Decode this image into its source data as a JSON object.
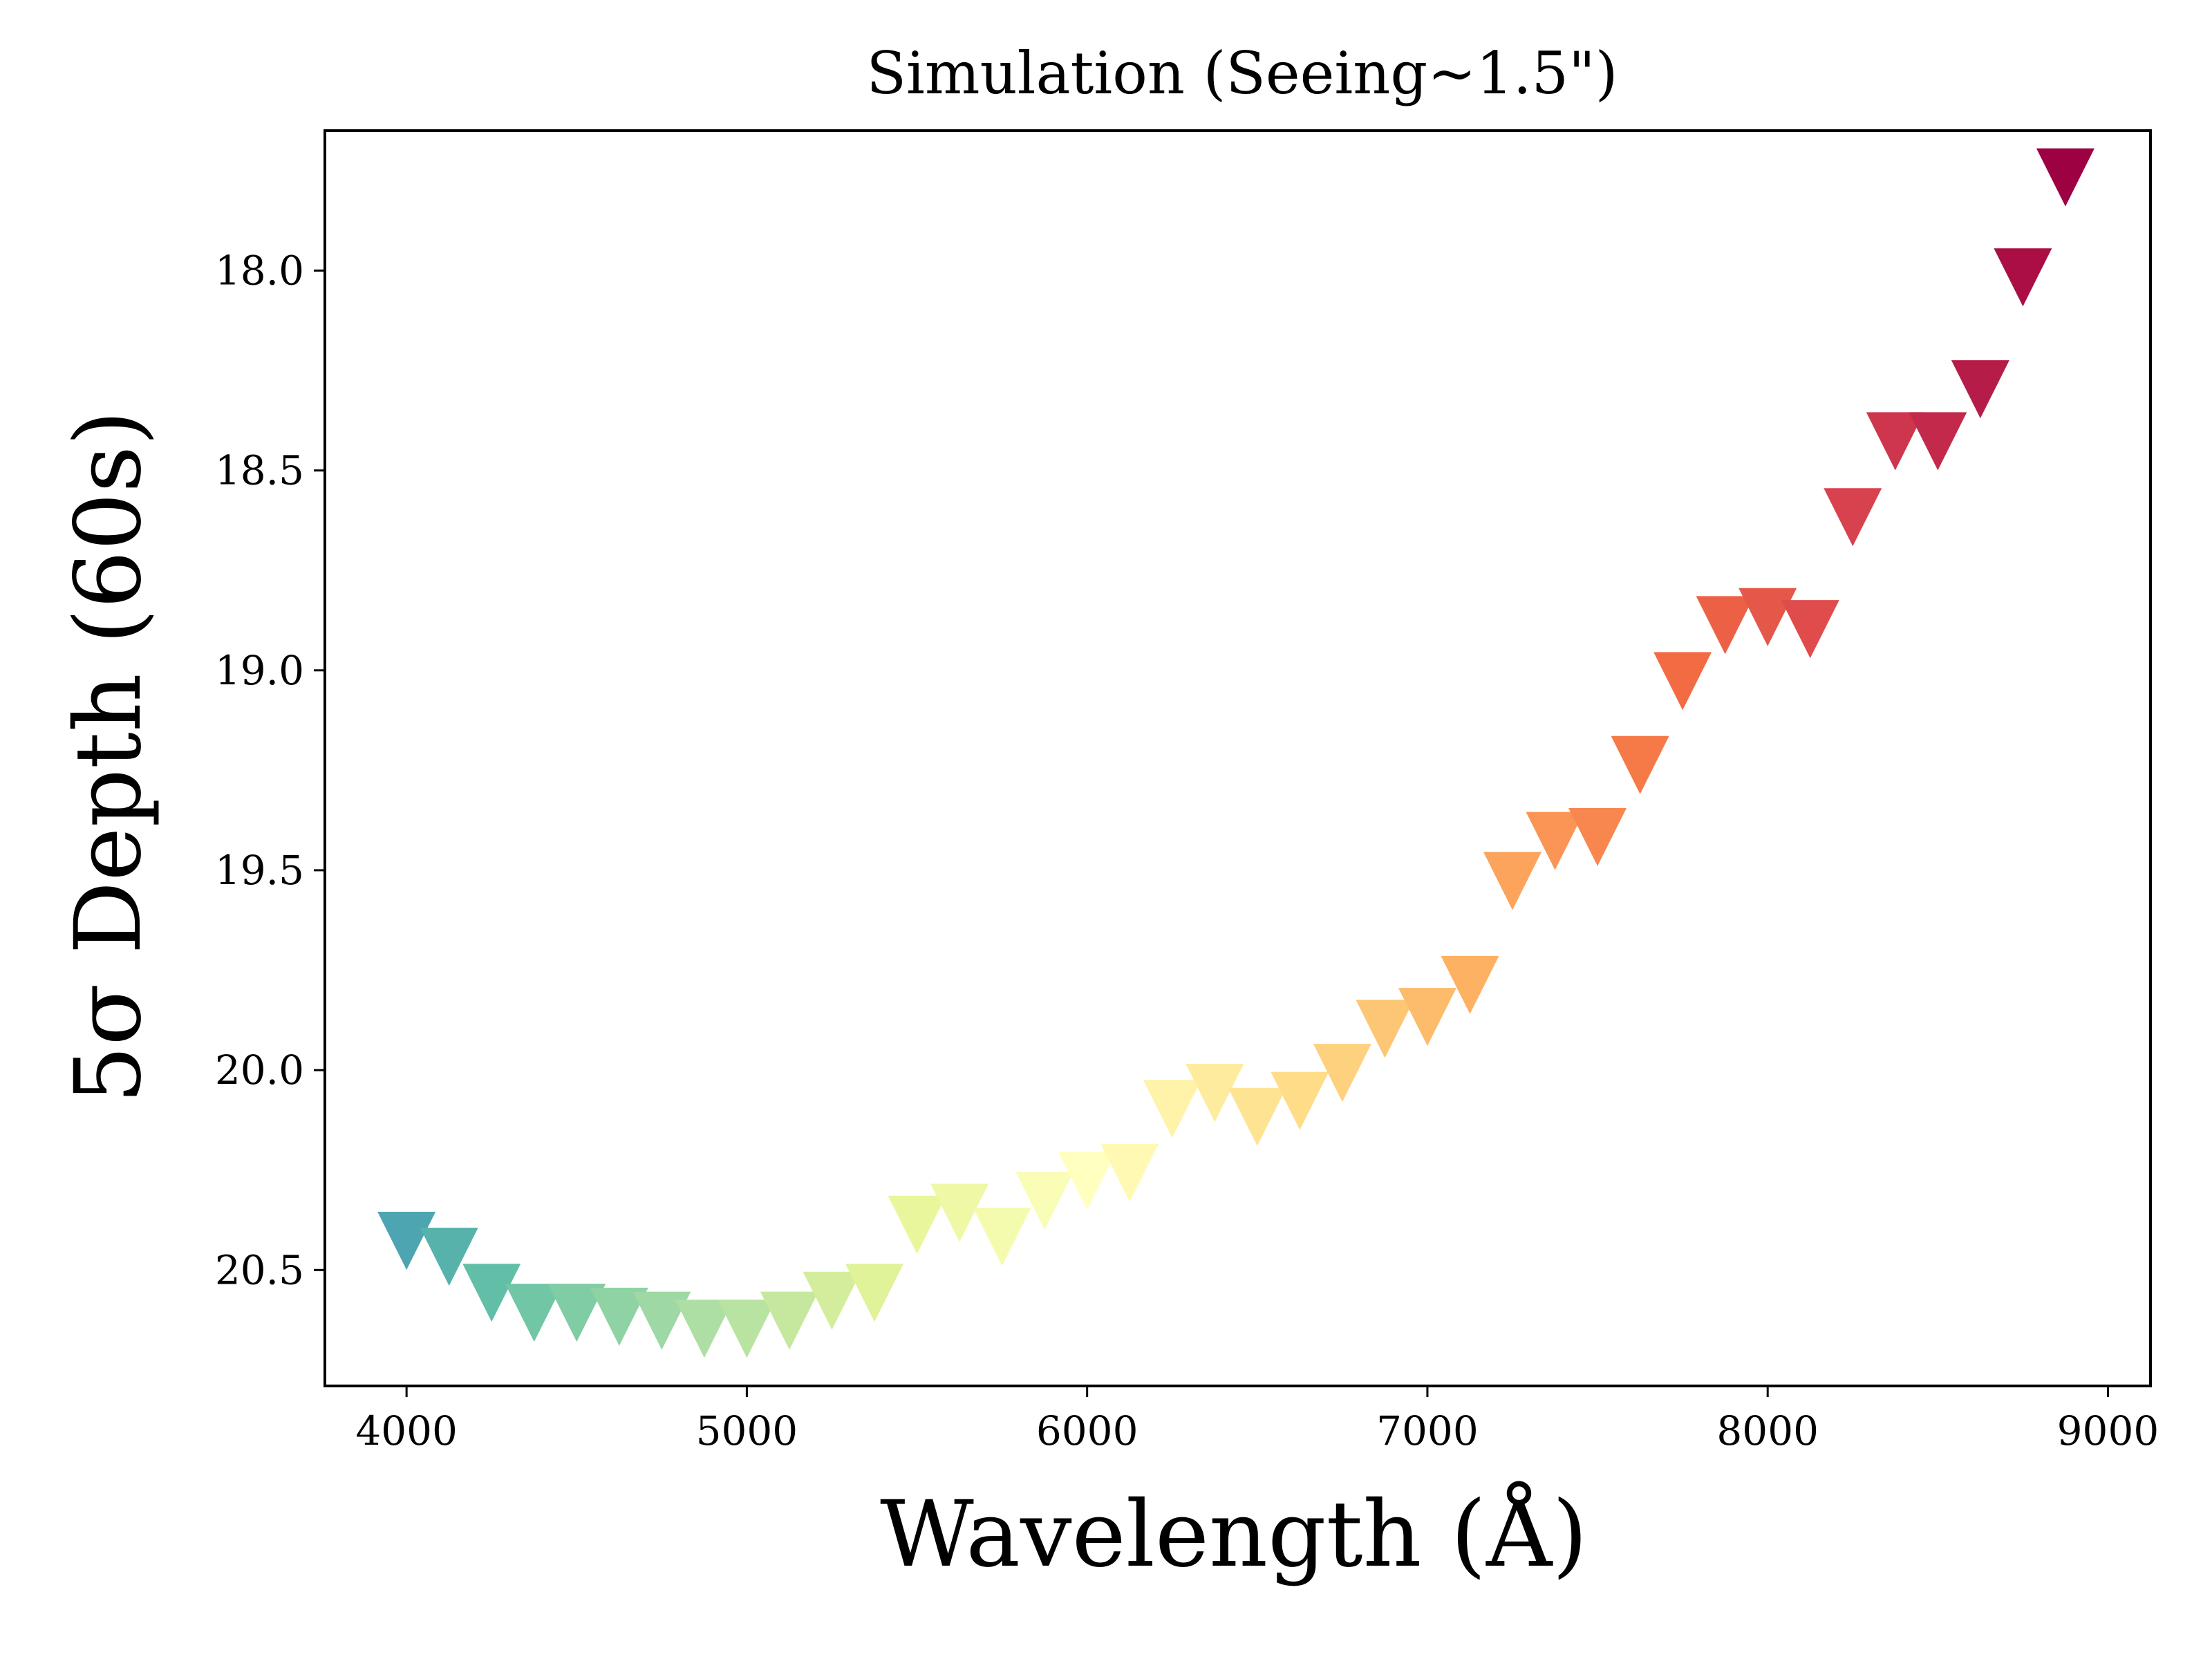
{
  "chart_data": {
    "type": "scatter",
    "title": "Simulation (Seeing~1.5\")",
    "xlabel": "Wavelength (Å)",
    "ylabel": "5σ Depth (60s)",
    "xlim": [
      3760,
      9125
    ],
    "ylim": [
      20.79,
      17.65
    ],
    "y_inverted": true,
    "grid": false,
    "marker": "triangle-down",
    "colormap": "Spectral_r",
    "x_ticks": [
      4000,
      5000,
      6000,
      7000,
      8000,
      9000
    ],
    "x_tick_labels": [
      "4000",
      "5000",
      "6000",
      "7000",
      "8000",
      "9000"
    ],
    "y_ticks": [
      18.0,
      18.5,
      19.0,
      19.5,
      20.0,
      20.5
    ],
    "y_tick_labels": [
      "18.0",
      "18.5",
      "19.0",
      "19.5",
      "20.0",
      "20.5"
    ],
    "x": [
      4000,
      4125,
      4250,
      4375,
      4500,
      4625,
      4750,
      4875,
      5000,
      5125,
      5250,
      5375,
      5500,
      5625,
      5750,
      5875,
      6000,
      6125,
      6250,
      6375,
      6500,
      6625,
      6750,
      6875,
      7000,
      7125,
      7250,
      7375,
      7500,
      7625,
      7750,
      7875,
      8000,
      8125,
      8250,
      8375,
      8500,
      8625,
      8750,
      8875
    ],
    "y": [
      20.42,
      20.46,
      20.55,
      20.6,
      20.6,
      20.61,
      20.62,
      20.64,
      20.64,
      20.62,
      20.57,
      20.55,
      20.38,
      20.35,
      20.41,
      20.32,
      20.27,
      20.25,
      20.09,
      20.05,
      20.11,
      20.07,
      20.0,
      19.89,
      19.86,
      19.78,
      19.52,
      19.42,
      19.41,
      19.23,
      19.02,
      18.88,
      18.86,
      18.89,
      18.61,
      18.42,
      18.42,
      18.29,
      18.01,
      17.76
    ]
  }
}
